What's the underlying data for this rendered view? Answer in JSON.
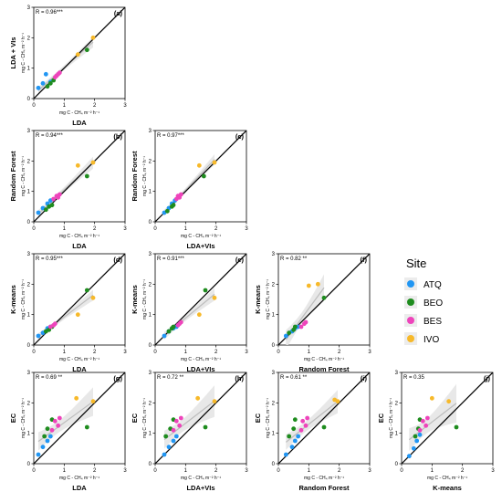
{
  "colors": {
    "ATQ": "#2196f3",
    "BEO": "#1e8c1e",
    "BES": "#ee44bb",
    "IVO": "#f7b92a",
    "one_to_one_line": "#000000",
    "regression_line": "#bdbdbd",
    "confidence_band": "#e6e6e6"
  },
  "legend": {
    "title": "Site",
    "items": [
      "ATQ",
      "BEO",
      "BES",
      "IVO"
    ]
  },
  "axis_ticks": [
    "0",
    "1",
    "2",
    "3"
  ],
  "tick_values": [
    0,
    1,
    2,
    3
  ],
  "x_unit_label": "mg C - CH₄ m⁻² h⁻¹",
  "y_unit_label": "mg C - CH₄ m⁻² h⁻¹",
  "chart_data": [
    {
      "id": "a",
      "type": "scatter",
      "panel_label": "(a)",
      "stat": "R = 0.96***",
      "ylabel": "LDA + VIs",
      "xlabel": "LDA",
      "xlim": [
        0,
        3
      ],
      "ylim": [
        0,
        3
      ],
      "series": [
        {
          "site": "ATQ",
          "x": [
            0.15,
            0.3,
            0.4,
            0.55
          ],
          "y": [
            0.35,
            0.5,
            0.8,
            0.55
          ]
        },
        {
          "site": "BEO",
          "x": [
            0.45,
            0.55,
            0.65,
            1.75
          ],
          "y": [
            0.4,
            0.5,
            0.6,
            1.6
          ]
        },
        {
          "site": "BES",
          "x": [
            0.7,
            0.75,
            0.8,
            0.85
          ],
          "y": [
            0.7,
            0.75,
            0.8,
            0.85
          ]
        },
        {
          "site": "IVO",
          "x": [
            1.45,
            1.95
          ],
          "y": [
            1.45,
            2.0
          ]
        }
      ]
    },
    {
      "id": "b",
      "type": "scatter",
      "panel_label": "(b)",
      "stat": "R = 0.94***",
      "ylabel": "Random Forest",
      "xlabel": "LDA",
      "xlim": [
        0,
        3
      ],
      "ylim": [
        0,
        3
      ],
      "series": [
        {
          "site": "ATQ",
          "x": [
            0.15,
            0.3,
            0.45,
            0.55
          ],
          "y": [
            0.3,
            0.45,
            0.6,
            0.7
          ]
        },
        {
          "site": "BEO",
          "x": [
            0.4,
            0.5,
            0.6,
            1.75
          ],
          "y": [
            0.4,
            0.5,
            0.55,
            1.5
          ]
        },
        {
          "site": "BES",
          "x": [
            0.65,
            0.75,
            0.8,
            0.85
          ],
          "y": [
            0.75,
            0.85,
            0.8,
            0.9
          ]
        },
        {
          "site": "IVO",
          "x": [
            1.45,
            1.95
          ],
          "y": [
            1.85,
            1.95
          ]
        }
      ]
    },
    {
      "id": "c",
      "type": "scatter",
      "panel_label": "(c)",
      "stat": "R = 0.97***",
      "ylabel": "Random Forest",
      "xlabel": "LDA+VIs",
      "xlim": [
        0,
        3
      ],
      "ylim": [
        0,
        3
      ],
      "series": [
        {
          "site": "ATQ",
          "x": [
            0.3,
            0.45,
            0.55,
            0.65
          ],
          "y": [
            0.3,
            0.45,
            0.6,
            0.7
          ]
        },
        {
          "site": "BEO",
          "x": [
            0.4,
            0.55,
            0.6,
            1.6
          ],
          "y": [
            0.35,
            0.5,
            0.55,
            1.5
          ]
        },
        {
          "site": "BES",
          "x": [
            0.7,
            0.75,
            0.8,
            0.85
          ],
          "y": [
            0.75,
            0.85,
            0.8,
            0.9
          ]
        },
        {
          "site": "IVO",
          "x": [
            1.45,
            1.95
          ],
          "y": [
            1.85,
            1.95
          ]
        }
      ]
    },
    {
      "id": "d",
      "type": "scatter",
      "panel_label": "(d)",
      "stat": "R = 0.95***",
      "ylabel": "K-means",
      "xlabel": "LDA",
      "xlim": [
        0,
        3
      ],
      "ylim": [
        0,
        3
      ],
      "series": [
        {
          "site": "ATQ",
          "x": [
            0.15,
            0.3,
            0.45,
            0.55
          ],
          "y": [
            0.3,
            0.4,
            0.55,
            0.6
          ]
        },
        {
          "site": "BEO",
          "x": [
            0.4,
            0.5,
            0.6,
            1.75
          ],
          "y": [
            0.45,
            0.5,
            0.6,
            1.8
          ]
        },
        {
          "site": "BES",
          "x": [
            0.55,
            0.65,
            0.7
          ],
          "y": [
            0.6,
            0.65,
            0.7
          ]
        },
        {
          "site": "IVO",
          "x": [
            1.45,
            1.95
          ],
          "y": [
            1.0,
            1.55
          ]
        }
      ]
    },
    {
      "id": "e",
      "type": "scatter",
      "panel_label": "(e)",
      "stat": "R = 0.91***",
      "ylabel": "K-means",
      "xlabel": "LDA+VIs",
      "xlim": [
        0,
        3
      ],
      "ylim": [
        0,
        3
      ],
      "series": [
        {
          "site": "ATQ",
          "x": [
            0.3,
            0.45,
            0.6,
            0.7
          ],
          "y": [
            0.3,
            0.45,
            0.55,
            0.6
          ]
        },
        {
          "site": "BEO",
          "x": [
            0.45,
            0.55,
            0.6,
            1.65
          ],
          "y": [
            0.45,
            0.55,
            0.6,
            1.8
          ]
        },
        {
          "site": "BES",
          "x": [
            0.75,
            0.8,
            0.85
          ],
          "y": [
            0.65,
            0.7,
            0.75
          ]
        },
        {
          "site": "IVO",
          "x": [
            1.45,
            1.95
          ],
          "y": [
            1.0,
            1.55
          ]
        }
      ]
    },
    {
      "id": "f",
      "type": "scatter",
      "panel_label": "(f)",
      "stat": "R = 0.82 **",
      "ylabel": "K-means",
      "xlabel": "Random Forest",
      "xlim": [
        0,
        3
      ],
      "ylim": [
        0,
        3
      ],
      "series": [
        {
          "site": "ATQ",
          "x": [
            0.25,
            0.45,
            0.55,
            0.65
          ],
          "y": [
            0.3,
            0.45,
            0.55,
            0.6
          ]
        },
        {
          "site": "BEO",
          "x": [
            0.35,
            0.5,
            0.55,
            1.5
          ],
          "y": [
            0.4,
            0.5,
            0.6,
            1.55
          ]
        },
        {
          "site": "BES",
          "x": [
            0.75,
            0.85,
            0.9
          ],
          "y": [
            0.6,
            0.7,
            0.75
          ]
        },
        {
          "site": "IVO",
          "x": [
            1.0,
            1.3
          ],
          "y": [
            1.95,
            2.0
          ]
        }
      ]
    },
    {
      "id": "g",
      "type": "scatter",
      "panel_label": "(g)",
      "stat": "R = 0.69 **",
      "ylabel": "EC",
      "xlabel": "LDA",
      "xlim": [
        0,
        3
      ],
      "ylim": [
        0,
        3
      ],
      "series": [
        {
          "site": "ATQ",
          "x": [
            0.15,
            0.3,
            0.45,
            0.55
          ],
          "y": [
            0.3,
            0.55,
            0.75,
            0.9
          ]
        },
        {
          "site": "BEO",
          "x": [
            0.35,
            0.45,
            0.6,
            1.75
          ],
          "y": [
            0.9,
            1.15,
            1.45,
            1.2
          ]
        },
        {
          "site": "BES",
          "x": [
            0.6,
            0.7,
            0.8,
            0.85
          ],
          "y": [
            1.1,
            1.4,
            1.25,
            1.5
          ]
        },
        {
          "site": "IVO",
          "x": [
            1.4,
            1.95
          ],
          "y": [
            2.15,
            2.05
          ]
        }
      ]
    },
    {
      "id": "h",
      "type": "scatter",
      "panel_label": "(h)",
      "stat": "R = 0.72 **",
      "ylabel": "EC",
      "xlabel": "LDA+VIs",
      "xlim": [
        0,
        3
      ],
      "ylim": [
        0,
        3
      ],
      "series": [
        {
          "site": "ATQ",
          "x": [
            0.3,
            0.45,
            0.6,
            0.7
          ],
          "y": [
            0.3,
            0.55,
            0.75,
            0.9
          ]
        },
        {
          "site": "BEO",
          "x": [
            0.35,
            0.5,
            0.6,
            1.65
          ],
          "y": [
            0.9,
            1.15,
            1.45,
            1.2
          ]
        },
        {
          "site": "BES",
          "x": [
            0.6,
            0.7,
            0.8,
            0.85
          ],
          "y": [
            1.1,
            1.4,
            1.25,
            1.5
          ]
        },
        {
          "site": "IVO",
          "x": [
            1.4,
            1.95
          ],
          "y": [
            2.15,
            2.05
          ]
        }
      ]
    },
    {
      "id": "i",
      "type": "scatter",
      "panel_label": "(i)",
      "stat": "R = 0.61 **",
      "ylabel": "EC",
      "xlabel": "Random Forest",
      "xlim": [
        0,
        3
      ],
      "ylim": [
        0,
        3
      ],
      "series": [
        {
          "site": "ATQ",
          "x": [
            0.25,
            0.45,
            0.55,
            0.65
          ],
          "y": [
            0.3,
            0.55,
            0.75,
            0.9
          ]
        },
        {
          "site": "BEO",
          "x": [
            0.35,
            0.5,
            0.55,
            1.5
          ],
          "y": [
            0.9,
            1.15,
            1.45,
            1.2
          ]
        },
        {
          "site": "BES",
          "x": [
            0.75,
            0.8,
            0.9,
            0.95
          ],
          "y": [
            1.1,
            1.4,
            1.25,
            1.5
          ]
        },
        {
          "site": "IVO",
          "x": [
            1.85,
            1.95
          ],
          "y": [
            2.1,
            2.05
          ]
        }
      ]
    },
    {
      "id": "j",
      "type": "scatter",
      "panel_label": "(j)",
      "stat": "R = 0.35",
      "ylabel": "EC",
      "xlabel": "K-means",
      "xlim": [
        0,
        3
      ],
      "ylim": [
        0,
        3
      ],
      "series": [
        {
          "site": "ATQ",
          "x": [
            0.25,
            0.4,
            0.5,
            0.6
          ],
          "y": [
            0.25,
            0.5,
            0.75,
            0.95
          ]
        },
        {
          "site": "BEO",
          "x": [
            0.45,
            0.55,
            0.6,
            1.8
          ],
          "y": [
            0.9,
            1.15,
            1.45,
            1.2
          ]
        },
        {
          "site": "BES",
          "x": [
            0.6,
            0.7,
            0.8,
            0.85
          ],
          "y": [
            1.1,
            1.4,
            1.25,
            1.5
          ]
        },
        {
          "site": "IVO",
          "x": [
            1.0,
            1.55
          ],
          "y": [
            2.15,
            2.05
          ]
        }
      ]
    }
  ]
}
